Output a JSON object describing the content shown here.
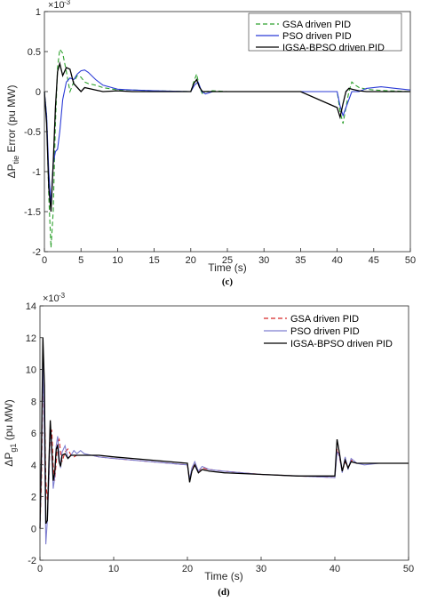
{
  "chart_data": [
    {
      "type": "line",
      "caption": "(c)",
      "xlabel": "Time (s)",
      "ylabel_prefix": "ΔP",
      "ylabel_sub": "tie",
      "ylabel_suffix": " Error (pu MW)",
      "exponent": "×10",
      "exponent_power": "-3",
      "xlim": [
        0,
        50
      ],
      "ylim": [
        -2,
        1
      ],
      "xticks": [
        0,
        5,
        10,
        15,
        20,
        25,
        30,
        35,
        40,
        45,
        50
      ],
      "yticks": [
        -2,
        -1.5,
        -1,
        -0.5,
        0,
        0.5,
        1
      ],
      "legend": "top-right",
      "grid": false,
      "series": [
        {
          "name": "GSA driven PID",
          "color": "#2ca02c",
          "dash": "5,3",
          "x": [
            0,
            0.3,
            0.6,
            0.9,
            1.2,
            1.5,
            1.8,
            2.1,
            2.5,
            3,
            3.5,
            4,
            4.5,
            5,
            5.5,
            6,
            7,
            8,
            10,
            12,
            15,
            20,
            20.4,
            20.8,
            21.2,
            21.6,
            22,
            23,
            25,
            30,
            35,
            40,
            40.4,
            40.8,
            41.2,
            41.6,
            42,
            42.5,
            43,
            44,
            45,
            47,
            50
          ],
          "y": [
            0,
            -0.3,
            -1.3,
            -1.95,
            -1.5,
            -0.4,
            0.3,
            0.53,
            0.48,
            0.25,
            0.0,
            0.12,
            0.2,
            0.18,
            0.12,
            0.1,
            0.08,
            0.05,
            0.02,
            0.02,
            0.01,
            0.0,
            0.12,
            0.22,
            0.05,
            -0.03,
            0.0,
            0.01,
            0.0,
            0.0,
            0.0,
            0.0,
            -0.25,
            -0.4,
            -0.2,
            0.0,
            0.12,
            0.08,
            0.05,
            0.03,
            0.02,
            0.01,
            0.0
          ]
        },
        {
          "name": "PSO driven PID",
          "color": "#2b3bd6",
          "dash": "",
          "x": [
            0,
            0.3,
            0.6,
            0.9,
            1.2,
            1.5,
            1.8,
            2.1,
            2.5,
            3,
            3.5,
            4,
            4.5,
            5,
            5.5,
            6,
            7,
            8,
            10,
            12,
            15,
            20,
            20.5,
            21,
            21.5,
            22,
            23,
            25,
            30,
            35,
            40,
            40.4,
            40.8,
            41.2,
            41.6,
            42,
            43,
            44,
            46,
            48,
            50
          ],
          "y": [
            0,
            -0.3,
            -1.0,
            -1.4,
            -0.9,
            -0.75,
            -0.72,
            -0.5,
            -0.1,
            0.12,
            0.17,
            0.15,
            0.22,
            0.26,
            0.27,
            0.24,
            0.15,
            0.08,
            0.03,
            0.02,
            0.01,
            0.0,
            0.08,
            0.12,
            0.0,
            -0.03,
            0.0,
            0.0,
            0.0,
            0.0,
            0.0,
            -0.18,
            -0.3,
            -0.2,
            -0.1,
            0.0,
            0.0,
            0.04,
            0.06,
            0.04,
            0.02
          ]
        },
        {
          "name": "IGSA-BPSO driven PID",
          "color": "#000000",
          "dash": "",
          "x": [
            0,
            0.3,
            0.6,
            0.9,
            1.2,
            1.5,
            1.8,
            2.1,
            2.5,
            3,
            3.5,
            4,
            4.5,
            5,
            5.5,
            6,
            7,
            8,
            10,
            12,
            15,
            20,
            20.4,
            20.8,
            21.2,
            21.6,
            22,
            23,
            25,
            30,
            35,
            40,
            40.4,
            40.8,
            41.2,
            41.6,
            42,
            42.5,
            43,
            44,
            45,
            47,
            50
          ],
          "y": [
            0,
            -0.4,
            -1.2,
            -1.5,
            -0.9,
            -0.2,
            0.25,
            0.35,
            0.2,
            0.3,
            0.28,
            0.1,
            0.05,
            0.0,
            0.05,
            0.04,
            0.02,
            0.0,
            0.01,
            0.0,
            0.0,
            0.0,
            0.1,
            0.15,
            0.05,
            0.0,
            0.0,
            0.0,
            0.0,
            0.0,
            0.0,
            -0.2,
            -0.32,
            -0.15,
            0.0,
            0.04,
            0.03,
            0.02,
            0.01,
            0.0,
            0.0,
            0.0,
            0.0
          ]
        }
      ]
    },
    {
      "type": "line",
      "caption": "(d)",
      "xlabel": "Time (s)",
      "ylabel_prefix": "ΔP",
      "ylabel_sub": "g1",
      "ylabel_suffix": " (pu MW)",
      "exponent": "×10",
      "exponent_power": "-3",
      "xlim": [
        0,
        50
      ],
      "ylim": [
        -2,
        14
      ],
      "xticks": [
        0,
        10,
        20,
        30,
        40,
        50
      ],
      "yticks": [
        -2,
        0,
        2,
        4,
        6,
        8,
        10,
        12,
        14
      ],
      "legend": "top-right",
      "grid": false,
      "series": [
        {
          "name": "GSA driven PID",
          "color": "#d62728",
          "dash": "5,3",
          "x": [
            0,
            0.2,
            0.4,
            0.6,
            0.8,
            1.0,
            1.2,
            1.4,
            1.6,
            1.8,
            2.0,
            2.2,
            2.4,
            2.6,
            2.8,
            3.0,
            3.4,
            3.8,
            4.2,
            4.6,
            5,
            6,
            7,
            8,
            10,
            15,
            20,
            20.3,
            20.6,
            21,
            21.5,
            22,
            23,
            25,
            30,
            35,
            40,
            40.3,
            40.6,
            41,
            41.4,
            41.8,
            42.2,
            43,
            44,
            46,
            50
          ],
          "y": [
            0,
            3,
            9.5,
            8,
            3,
            1.8,
            3,
            5.8,
            6.2,
            4.0,
            3.0,
            4.2,
            5.4,
            5.6,
            4.8,
            4.2,
            4.8,
            5.0,
            4.6,
            4.5,
            4.6,
            4.6,
            4.6,
            4.5,
            4.4,
            4.2,
            4.0,
            3.0,
            3.6,
            4.1,
            3.6,
            3.8,
            3.7,
            3.6,
            3.4,
            3.3,
            3.2,
            5.0,
            4.5,
            3.6,
            4.2,
            3.8,
            4.3,
            4.1,
            4.1,
            4.1,
            4.1
          ]
        },
        {
          "name": "PSO driven PID",
          "color": "#7f7fd0",
          "dash": "",
          "x": [
            0,
            0.2,
            0.4,
            0.6,
            0.8,
            1.0,
            1.2,
            1.4,
            1.6,
            1.8,
            2.0,
            2.2,
            2.4,
            2.6,
            2.8,
            3.0,
            3.4,
            3.8,
            4.2,
            4.6,
            5,
            5.5,
            6,
            7,
            8,
            10,
            15,
            20,
            20.3,
            20.6,
            21,
            21.5,
            22,
            23,
            25,
            30,
            35,
            40,
            40.3,
            40.6,
            41,
            41.4,
            41.8,
            42.2,
            43,
            44,
            46,
            50
          ],
          "y": [
            0,
            4,
            10.5,
            6,
            -1.0,
            0.5,
            3,
            6.5,
            5.0,
            2.5,
            3.2,
            5.2,
            5.8,
            4.5,
            3.8,
            4.8,
            5.2,
            4.4,
            4.6,
            4.9,
            4.7,
            4.9,
            4.7,
            4.6,
            4.5,
            4.4,
            4.2,
            4.0,
            3.1,
            3.8,
            4.2,
            3.6,
            3.9,
            3.7,
            3.6,
            3.4,
            3.3,
            3.2,
            4.8,
            4.6,
            3.5,
            4.5,
            3.7,
            4.4,
            4.1,
            4.0,
            4.1,
            4.1
          ]
        },
        {
          "name": "IGSA-BPSO driven PID",
          "color": "#000000",
          "dash": "",
          "x": [
            0,
            0.2,
            0.4,
            0.6,
            0.8,
            1.0,
            1.2,
            1.4,
            1.6,
            1.8,
            2.0,
            2.2,
            2.4,
            2.6,
            2.8,
            3.0,
            3.4,
            3.8,
            4.2,
            4.6,
            5,
            6,
            7,
            8,
            10,
            15,
            20,
            20.3,
            20.6,
            21,
            21.5,
            22,
            23,
            25,
            30,
            35,
            40,
            40.3,
            40.6,
            41,
            41.4,
            41.8,
            42.2,
            43,
            44,
            46,
            50
          ],
          "y": [
            0,
            5,
            12,
            9,
            0.3,
            0.5,
            4.0,
            6.8,
            5.0,
            3.0,
            3.5,
            5.0,
            5.2,
            4.2,
            3.9,
            4.6,
            4.7,
            4.4,
            4.6,
            4.6,
            4.6,
            4.6,
            4.6,
            4.6,
            4.5,
            4.3,
            4.1,
            2.9,
            3.6,
            4.0,
            3.5,
            3.7,
            3.6,
            3.5,
            3.4,
            3.3,
            3.3,
            5.6,
            4.8,
            3.6,
            4.3,
            3.8,
            4.2,
            4.1,
            4.1,
            4.1,
            4.1
          ]
        }
      ]
    }
  ]
}
